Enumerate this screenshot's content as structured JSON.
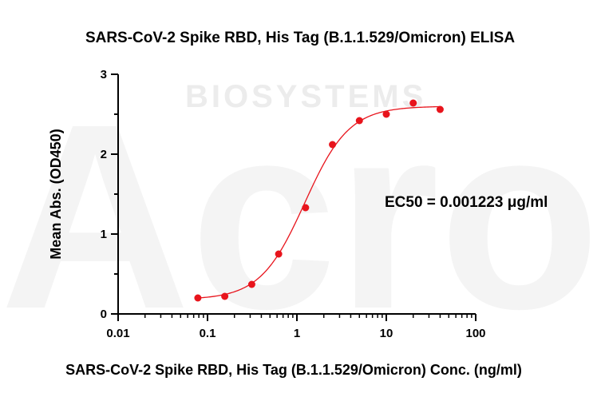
{
  "watermark": {
    "word": "BIOSYSTEMS",
    "logo_letters": "Acro"
  },
  "chart_data": {
    "type": "scatter",
    "title": "SARS-CoV-2 Spike RBD, His Tag (B.1.1.529/Omicron) ELISA",
    "xlabel": "SARS-CoV-2 Spike RBD, His Tag (B.1.1.529/Omicron) Conc. (ng/ml)",
    "ylabel": "Mean Abs. (OD450)",
    "xscale": "log",
    "xlim": [
      0.01,
      100
    ],
    "ylim": [
      0,
      3
    ],
    "x_ticks": [
      {
        "value": 0.01,
        "label": "0.01"
      },
      {
        "value": 0.1,
        "label": "0.1"
      },
      {
        "value": 1,
        "label": "1"
      },
      {
        "value": 10,
        "label": "10"
      },
      {
        "value": 100,
        "label": "100"
      }
    ],
    "y_ticks": [
      {
        "value": 0,
        "label": "0"
      },
      {
        "value": 1,
        "label": "1"
      },
      {
        "value": 2,
        "label": "2"
      },
      {
        "value": 3,
        "label": "3"
      }
    ],
    "grid": false,
    "legend": "none",
    "annotation": "EC50 = 0.001223 μg/ml",
    "color": "#e8141c",
    "series": [
      {
        "x": [
          0.078,
          0.156,
          0.3125,
          0.625,
          1.25,
          2.5,
          5,
          10,
          20,
          40
        ],
        "y": [
          0.2,
          0.22,
          0.37,
          0.75,
          1.33,
          2.12,
          2.42,
          2.5,
          2.64,
          2.56
        ]
      }
    ],
    "fit": {
      "model": "4PL",
      "bottom": 0.18,
      "top": 2.6,
      "ec50": 1.223,
      "hill": 1.75
    }
  }
}
